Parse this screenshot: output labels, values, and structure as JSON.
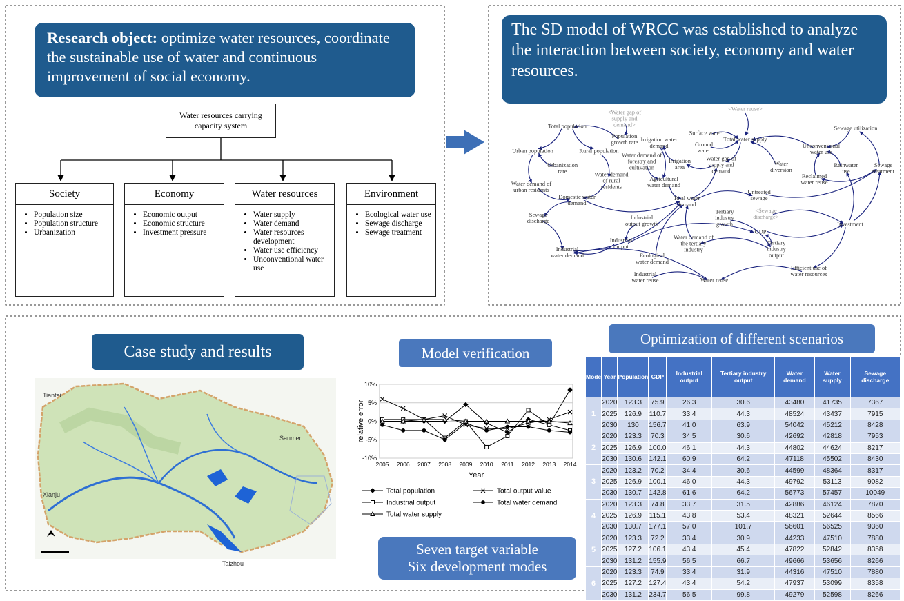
{
  "research": {
    "title_bold": "Research object:",
    "text": "optimize water resources, coordinate the sustainable use of water and continuous improvement of social economy."
  },
  "system": "Water resources carrying capacity system",
  "subsystems": [
    {
      "name": "Society",
      "items": [
        "Population size",
        "Population structure",
        "Urbanization"
      ]
    },
    {
      "name": "Economy",
      "items": [
        "Economic output",
        "Economic structure",
        "Investment pressure"
      ]
    },
    {
      "name": "Water resources",
      "items": [
        "Water supply",
        "Water demand",
        "Water resources development",
        "Water use efficiency",
        "Unconventional water use"
      ]
    },
    {
      "name": "Environment",
      "items": [
        "Ecological water use",
        "Sewage discharge",
        "Sewage treatment"
      ]
    }
  ],
  "sd_model": {
    "heading": "The SD model of WRCC was established to analyze the interaction between society, economy and water resources.",
    "nodes": [
      "<Water gap of supply and demand>",
      "<Water reuse>",
      "Total population",
      "Population growth rate",
      "Irrigation water demand",
      "Surface water",
      "Total water supply",
      "Sewage utilization",
      "Urban population",
      "Rural population",
      "Ground water",
      "Unconventional water use",
      "Urbanization rate",
      "Water demand of forestry and cultivation",
      "Irrigation area",
      "Water gap of supply and demand",
      "Water diversion",
      "Rainwater use",
      "Sewage treatment",
      "Water demand of rural residents",
      "Agricultural water demand",
      "Reclaimed water reuse",
      "Water demand of urban residents",
      "Domestic water demand",
      "Untreated sewage",
      "Total water demand",
      "<Sewage discharge>",
      "Tertiary industry growth",
      "Sewage discharge",
      "Industrial output growth",
      "GDP",
      "Investment",
      "Industrial output",
      "Water demand of the tertiary industry",
      "Tertiary industry output",
      "Industrial water demand",
      "Ecological water demand",
      "Efficient use of water resources",
      "Industrial water reuse",
      "Water reuse"
    ]
  },
  "case_study": {
    "title": "Case study and results",
    "map_labels": [
      "Tiantai",
      "Sanmen",
      "Xianju",
      "Taizhou"
    ]
  },
  "chart_data": {
    "type": "line",
    "title": "Model verification",
    "x_label": "Year",
    "y_label": "relative error",
    "categories": [
      "2005",
      "2006",
      "2007",
      "2008",
      "2009",
      "2010",
      "2011",
      "2012",
      "2013",
      "2014"
    ],
    "ylim": [
      -10,
      10
    ],
    "yticks": [
      {
        "value": 10,
        "label": "10%"
      },
      {
        "value": 5,
        "label": "5%"
      },
      {
        "value": 0,
        "label": "0%"
      },
      {
        "value": -5,
        "label": "-5%"
      },
      {
        "value": -10,
        "label": "-10%"
      }
    ],
    "grid": true,
    "series": [
      {
        "name": "Total population",
        "color": "#000000",
        "marker": "diamond",
        "values": [
          0,
          0,
          0,
          0,
          4.5,
          -0.5,
          -3,
          0.5,
          -1,
          8.5
        ]
      },
      {
        "name": "Total output value",
        "color": "#000000",
        "marker": "x",
        "values": [
          6,
          3.5,
          0.5,
          1.5,
          -1,
          -2,
          -2,
          -0.5,
          0.5,
          2.5
        ]
      },
      {
        "name": "Industrial output",
        "color": "#000000",
        "marker": "square",
        "values": [
          0.5,
          0.5,
          0.5,
          -4.5,
          0,
          -7,
          -4,
          3,
          -1,
          -2.5
        ]
      },
      {
        "name": "Total water demand",
        "color": "#000000",
        "marker": "circle",
        "values": [
          -1,
          -2.5,
          -2.5,
          -5,
          -0.5,
          -2.5,
          -1.5,
          -1.5,
          -2.5,
          -3
        ]
      },
      {
        "name": "Total water supply",
        "color": "#000000",
        "marker": "triangle",
        "values": [
          0,
          0,
          0.5,
          0.5,
          0,
          0,
          0,
          0,
          0,
          -0.5
        ]
      }
    ]
  },
  "targets": [
    "Seven target variable",
    "Six development modes"
  ],
  "scenarios": {
    "title": "Optimization of different scenarios",
    "columns": [
      "Mode",
      "Year",
      "Population",
      "GDP",
      "Industrial output",
      "Tertiary industry output",
      "Water demand",
      "Water supply",
      "Sewage discharge"
    ],
    "modes": [
      {
        "mode": "1",
        "rows": [
          [
            "2020",
            "123.3",
            "75.9",
            "26.3",
            "30.6",
            "43480",
            "41735",
            "7367"
          ],
          [
            "2025",
            "126.9",
            "110.7",
            "33.4",
            "44.3",
            "48524",
            "43437",
            "7915"
          ],
          [
            "2030",
            "130",
            "156.7",
            "41.0",
            "63.9",
            "54042",
            "45212",
            "8428"
          ]
        ]
      },
      {
        "mode": "2",
        "rows": [
          [
            "2020",
            "123.3",
            "70.3",
            "34.5",
            "30.6",
            "42692",
            "42818",
            "7953"
          ],
          [
            "2025",
            "126.9",
            "100.0",
            "46.1",
            "44.3",
            "44802",
            "44624",
            "8217"
          ],
          [
            "2030",
            "130.6",
            "142.1",
            "60.9",
            "64.2",
            "47118",
            "45502",
            "8430"
          ]
        ]
      },
      {
        "mode": "3",
        "rows": [
          [
            "2020",
            "123.2",
            "70.2",
            "34.4",
            "30.6",
            "44599",
            "48364",
            "8317"
          ],
          [
            "2025",
            "126.9",
            "100.1",
            "46.0",
            "44.3",
            "49792",
            "53113",
            "9082"
          ],
          [
            "2030",
            "130.7",
            "142.8",
            "61.6",
            "64.2",
            "56773",
            "57457",
            "10049"
          ]
        ]
      },
      {
        "mode": "4",
        "rows": [
          [
            "2020",
            "123.3",
            "74.8",
            "33.7",
            "31.5",
            "42886",
            "46124",
            "7870"
          ],
          [
            "2025",
            "126.9",
            "115.1",
            "43.8",
            "53.4",
            "48321",
            "52644",
            "8566"
          ],
          [
            "2030",
            "130.7",
            "177.1",
            "57.0",
            "101.7",
            "56601",
            "56525",
            "9360"
          ]
        ]
      },
      {
        "mode": "5",
        "rows": [
          [
            "2020",
            "123.3",
            "72.2",
            "33.4",
            "30.9",
            "44233",
            "47510",
            "7880"
          ],
          [
            "2025",
            "127.2",
            "106.1",
            "43.4",
            "45.4",
            "47822",
            "52842",
            "8358"
          ],
          [
            "2030",
            "131.2",
            "155.9",
            "56.5",
            "66.7",
            "49666",
            "53656",
            "8266"
          ]
        ]
      },
      {
        "mode": "6",
        "rows": [
          [
            "2020",
            "123.3",
            "74.9",
            "33.4",
            "31.9",
            "44316",
            "47510",
            "7880"
          ],
          [
            "2025",
            "127.2",
            "127.4",
            "43.4",
            "54.2",
            "47937",
            "53099",
            "8358"
          ],
          [
            "2030",
            "131.2",
            "234.7",
            "56.5",
            "99.8",
            "49279",
            "52598",
            "8266"
          ]
        ]
      }
    ]
  }
}
